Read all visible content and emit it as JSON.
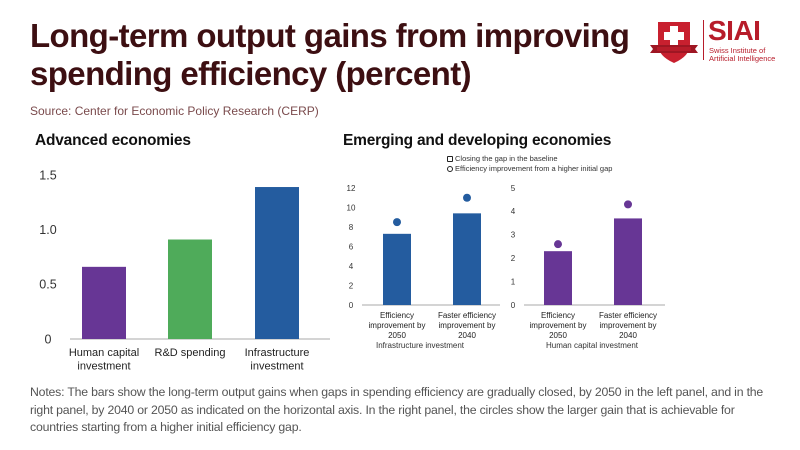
{
  "header": {
    "title": "Long-term output gains from improving spending efficiency (percent)",
    "source": "Source: Center for Economic Policy Research (CERP)"
  },
  "logo": {
    "name": "SIAI",
    "subtitle_line1": "Swiss Institute of",
    "subtitle_line2": "Artificial Intelligence",
    "brand_color": "#b71c2a"
  },
  "panels": {
    "left_title": "Advanced economies",
    "right_title": "Emerging and developing economies"
  },
  "legend": {
    "items": [
      {
        "symbol": "square",
        "label": "Closing the gap in the baseline"
      },
      {
        "symbol": "circle",
        "label": "Efficiency improvement from a higher initial gap"
      }
    ]
  },
  "chart_data": [
    {
      "type": "bar",
      "title": "Advanced economies",
      "categories": [
        "Human capital investment",
        "R&D spending",
        "Infrastructure investment"
      ],
      "category_lines": [
        [
          "Human capital",
          "investment"
        ],
        [
          "R&D spending"
        ],
        [
          "Infrastructure",
          "investment"
        ]
      ],
      "values": [
        0.66,
        0.91,
        1.39
      ],
      "colors": [
        "#673695",
        "#4fab5a",
        "#245c9f"
      ],
      "ylim": [
        0,
        1.5
      ],
      "yticks": [
        0,
        0.5,
        1.0,
        1.5
      ],
      "ytick_labels": [
        "0",
        "0.5",
        "1.0",
        "1.5"
      ],
      "xlabel": "",
      "ylabel": "",
      "grid": false
    },
    {
      "type": "bar",
      "title": "Infrastructure investment",
      "xlabel": "Infrastructure investment",
      "categories": [
        "Efficiency improvement by 2050",
        "Faster efficiency improvement by 2040"
      ],
      "category_lines": [
        [
          "Efficiency",
          "improvement by",
          "2050"
        ],
        [
          "Faster efficiency",
          "improvement by",
          "2040"
        ]
      ],
      "series": [
        {
          "name": "Closing the gap in the baseline",
          "kind": "bar",
          "values": [
            7.3,
            9.4
          ]
        },
        {
          "name": "Efficiency improvement from a higher initial gap",
          "kind": "point",
          "values": [
            8.5,
            11.0
          ]
        }
      ],
      "color": "#245c9f",
      "ylim": [
        0,
        12
      ],
      "yticks": [
        0,
        2,
        4,
        6,
        8,
        10,
        12
      ],
      "ytick_labels": [
        "0",
        "2",
        "4",
        "6",
        "8",
        "10",
        "12"
      ],
      "grid": false
    },
    {
      "type": "bar",
      "title": "Human capital investment",
      "xlabel": "Human capital investment",
      "categories": [
        "Efficiency improvement by 2050",
        "Faster efficiency improvement by 2040"
      ],
      "category_lines": [
        [
          "Efficiency",
          "improvement by",
          "2050"
        ],
        [
          "Faster efficiency",
          "improvement by",
          "2040"
        ]
      ],
      "series": [
        {
          "name": "Closing the gap in the baseline",
          "kind": "bar",
          "values": [
            2.3,
            3.7
          ]
        },
        {
          "name": "Efficiency improvement from a higher initial gap",
          "kind": "point",
          "values": [
            2.6,
            4.3
          ]
        }
      ],
      "color": "#673695",
      "ylim": [
        0,
        5
      ],
      "yticks": [
        0,
        1,
        2,
        3,
        4,
        5
      ],
      "ytick_labels": [
        "0",
        "1",
        "2",
        "3",
        "4",
        "5"
      ],
      "grid": false
    }
  ],
  "notes": "Notes: The bars show the long-term output gains when gaps in spending efficiency are gradually closed, by 2050 in the left panel, and in the right panel, by 2040 or 2050 as indicated on the horizontal axis. In the right panel, the circles show the larger gain that is achievable for countries starting from a higher initial efficiency gap."
}
